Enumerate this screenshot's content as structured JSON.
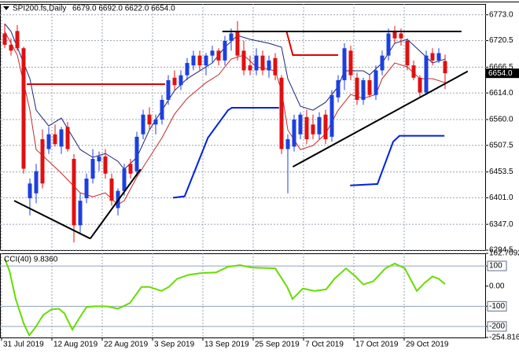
{
  "chart_data": [
    {
      "type": "candlestick",
      "title": "SPI200.fs,Daily",
      "ohlc_label": "6679.0 6692.0 6622.0 6654.0",
      "categories": [
        "31 Jul 2019",
        null,
        null,
        null,
        null,
        null,
        null,
        null,
        "12 Aug 2019",
        null,
        null,
        null,
        null,
        null,
        null,
        null,
        "22 Aug 2019",
        null,
        null,
        null,
        null,
        null,
        null,
        null,
        "3 Sep 2019",
        null,
        null,
        null,
        null,
        null,
        null,
        null,
        "13 Sep 2019",
        null,
        null,
        null,
        null,
        null,
        null,
        null,
        "25 Sep 2019",
        null,
        null,
        null,
        null,
        null,
        null,
        null,
        "7 Oct 2019",
        null,
        null,
        null,
        null,
        null,
        null,
        null,
        "17 Oct 2019",
        null,
        null,
        null,
        null,
        null,
        null,
        null,
        "29 Oct 2019",
        null,
        null,
        null,
        null,
        null,
        null
      ],
      "open": [
        6735,
        6712,
        6740,
        6705,
        6400,
        6410,
        6520,
        6500,
        6530,
        6505,
        6545,
        6480,
        6345,
        6400,
        6440,
        6475,
        6485,
        6440,
        6380,
        6415,
        6470,
        6455,
        6530,
        6570,
        6550,
        6560,
        6600,
        6645,
        6630,
        6650,
        6670,
        6690,
        6670,
        6690,
        6700,
        6680,
        6720,
        6740,
        6700,
        6670,
        6660,
        6690,
        6660,
        6685,
        6645,
        6500,
        6505,
        6530,
        6565,
        6550,
        6530,
        6570,
        6525,
        6605,
        6640,
        6700,
        6645,
        6600,
        6640,
        6610,
        6660,
        6690,
        6740,
        6735,
        6720,
        6670,
        6645,
        6615,
        6695,
        6680,
        6679
      ],
      "high": [
        6755,
        6725,
        6752,
        6708,
        6440,
        6470,
        6540,
        6545,
        6550,
        6545,
        6555,
        6490,
        6410,
        6450,
        6500,
        6495,
        6500,
        6450,
        6420,
        6470,
        6480,
        6535,
        6580,
        6585,
        6570,
        6610,
        6650,
        6660,
        6660,
        6685,
        6700,
        6700,
        6695,
        6710,
        6705,
        6730,
        6745,
        6760,
        6720,
        6690,
        6705,
        6700,
        6690,
        6695,
        6650,
        6530,
        6570,
        6575,
        6580,
        6570,
        6575,
        6580,
        6620,
        6650,
        6715,
        6710,
        6655,
        6645,
        6650,
        6670,
        6700,
        6745,
        6750,
        6745,
        6725,
        6680,
        6650,
        6700,
        6705,
        6705,
        6692
      ],
      "low": [
        6705,
        6690,
        6700,
        6450,
        6365,
        6390,
        6420,
        6490,
        6505,
        6490,
        6495,
        6310,
        6330,
        6390,
        6430,
        6455,
        6440,
        6385,
        6365,
        6405,
        6440,
        6445,
        6520,
        6540,
        6530,
        6550,
        6590,
        6620,
        6620,
        6640,
        6660,
        6660,
        6650,
        6675,
        6670,
        6670,
        6700,
        6680,
        6650,
        6650,
        6650,
        6650,
        6645,
        6640,
        6490,
        6410,
        6495,
        6520,
        6510,
        6520,
        6520,
        6510,
        6515,
        6595,
        6620,
        6640,
        6590,
        6590,
        6605,
        6600,
        6650,
        6680,
        6715,
        6710,
        6660,
        6640,
        6605,
        6610,
        6670,
        6675,
        6622
      ],
      "close": [
        6712,
        6700,
        6705,
        6460,
        6430,
        6455,
        6430,
        6530,
        6510,
        6540,
        6500,
        6345,
        6395,
        6440,
        6480,
        6485,
        6450,
        6395,
        6415,
        6460,
        6450,
        6525,
        6570,
        6550,
        6560,
        6600,
        6640,
        6630,
        6650,
        6675,
        6690,
        6670,
        6690,
        6700,
        6680,
        6720,
        6735,
        6690,
        6660,
        6660,
        6690,
        6660,
        6680,
        6650,
        6500,
        6520,
        6560,
        6570,
        6520,
        6530,
        6565,
        6520,
        6610,
        6640,
        6705,
        6650,
        6600,
        6640,
        6610,
        6660,
        6690,
        6735,
        6725,
        6725,
        6670,
        6645,
        6615,
        6690,
        6680,
        6695,
        6654
      ],
      "up_color": "#1d3fe0",
      "down_color": "#e01010",
      "xlim": [
        -0.75,
        76.5
      ],
      "ylim": [
        6294.5,
        6795
      ],
      "yticks": [
        {
          "value": 6773,
          "label": "6773.0"
        },
        6720.5,
        6666.5,
        {
          "value": 6614,
          "label": "6614.0"
        },
        {
          "value": 6560,
          "label": "6560.0"
        },
        6507.5,
        6453.5,
        {
          "value": 6401,
          "label": "6401.0"
        },
        {
          "value": 6347,
          "label": "6347.0"
        },
        6294.5
      ],
      "grid": true,
      "last_price": {
        "value": 6654,
        "label": "6654.0"
      },
      "overlays": [
        {
          "color": "#1a237e",
          "width": 1,
          "x": [
            0,
            1,
            2,
            4,
            5,
            7,
            9,
            12,
            14,
            16,
            18,
            19,
            21,
            23,
            25,
            27,
            29,
            31,
            33,
            35,
            37,
            39,
            42,
            44,
            45,
            47,
            49,
            51,
            53,
            54,
            57,
            58,
            60,
            62,
            64,
            66,
            68,
            70
          ],
          "values": [
            6755,
            6739,
            6707,
            6643,
            6579,
            6547,
            6563,
            6499,
            6483,
            6491,
            6475,
            6459,
            6483,
            6539,
            6579,
            6619,
            6643,
            6659,
            6675,
            6707,
            6731,
            6723,
            6715,
            6707,
            6643,
            6587,
            6579,
            6595,
            6627,
            6659,
            6659,
            6651,
            6675,
            6715,
            6723,
            6699,
            6675,
            6683
          ]
        },
        {
          "color": "#c62828",
          "width": 1,
          "x": [
            0,
            2,
            4,
            5,
            7,
            9,
            12,
            14,
            16,
            18,
            19,
            21,
            23,
            25,
            27,
            29,
            32,
            34,
            36,
            38,
            40,
            43,
            44,
            45,
            47,
            49,
            51,
            53,
            55,
            57,
            59,
            60,
            62,
            64,
            66,
            68,
            70
          ],
          "values": [
            6739,
            6691,
            6579,
            6499,
            6475,
            6451,
            6411,
            6403,
            6411,
            6387,
            6395,
            6443,
            6483,
            6523,
            6571,
            6603,
            6635,
            6651,
            6683,
            6691,
            6667,
            6659,
            6619,
            6539,
            6499,
            6507,
            6531,
            6579,
            6611,
            6603,
            6611,
            6643,
            6675,
            6667,
            6643,
            6643,
            6635
          ]
        },
        {
          "color": "#e00000",
          "width": 2,
          "x": [
            3.5,
            25.5,
            25.5,
            44.8,
            45.8,
            53
          ],
          "values": [
            6632,
            6632,
            null,
            6739,
            6691,
            6691
          ]
        },
        {
          "color": "#0022dd",
          "width": 2,
          "x": [
            26.75,
            28.6,
            32.3,
            35.5,
            36.1,
            43.6,
            43.6,
            54.9,
            59.25,
            61.75,
            62.75,
            69.9
          ],
          "values": [
            6401,
            6404,
            6523,
            6579,
            6584,
            6584,
            null,
            6426,
            6429,
            6515,
            6527,
            6527
          ]
        }
      ],
      "trendlines": [
        {
          "color": "#000000",
          "x": [
            1.5,
            13.6
          ],
          "values": [
            6395,
            6318
          ]
        },
        {
          "color": "#000000",
          "x": [
            13.6,
            21.6
          ],
          "values": [
            6318,
            6459
          ]
        },
        {
          "color": "#000000",
          "x": [
            34.6,
            72.6
          ],
          "values": [
            6739,
            6739
          ]
        },
        {
          "color": "#000000",
          "x": [
            45.8,
            73.6
          ],
          "values": [
            6464,
            6658
          ]
        }
      ]
    },
    {
      "type": "line",
      "title": "CCI(40) 9.8360",
      "color": "#66dd00",
      "xlim": [
        -0.75,
        76.5
      ],
      "x": [
        0,
        0.75,
        1.75,
        3,
        3.9,
        4.9,
        6.1,
        7.4,
        8.6,
        9.5,
        10.75,
        11.75,
        13,
        14.25,
        16.1,
        18,
        19.9,
        21.75,
        23,
        24.9,
        26.1,
        27.4,
        29.25,
        31.1,
        33.6,
        35.5,
        37.4,
        39.25,
        43,
        44.9,
        45.75,
        47.4,
        49.25,
        51.1,
        52.4,
        54.25,
        55.75,
        57,
        58.6,
        60.5,
        62,
        63.6,
        65.5,
        66.75,
        68,
        69,
        70
      ],
      "values": [
        136,
        76,
        -64,
        -184,
        -244,
        -204,
        -144,
        -116,
        -112,
        -136,
        -216,
        -164,
        -104,
        -100,
        -100,
        -112,
        -84,
        -4,
        -4,
        -24,
        -4,
        36,
        56,
        64,
        68,
        96,
        104,
        92,
        88,
        -4,
        -64,
        -12,
        -24,
        -16,
        36,
        88,
        48,
        8,
        24,
        88,
        112,
        88,
        -24,
        16,
        48,
        36,
        9.836
      ],
      "ylim": [
        -254.8164,
        162.7092
      ],
      "yticks": [
        162.7092,
        100,
        {
          "value": 0,
          "label": "0.00"
        },
        -100,
        -200,
        -254.8164
      ],
      "levels": [
        100,
        -100,
        -200
      ]
    }
  ]
}
